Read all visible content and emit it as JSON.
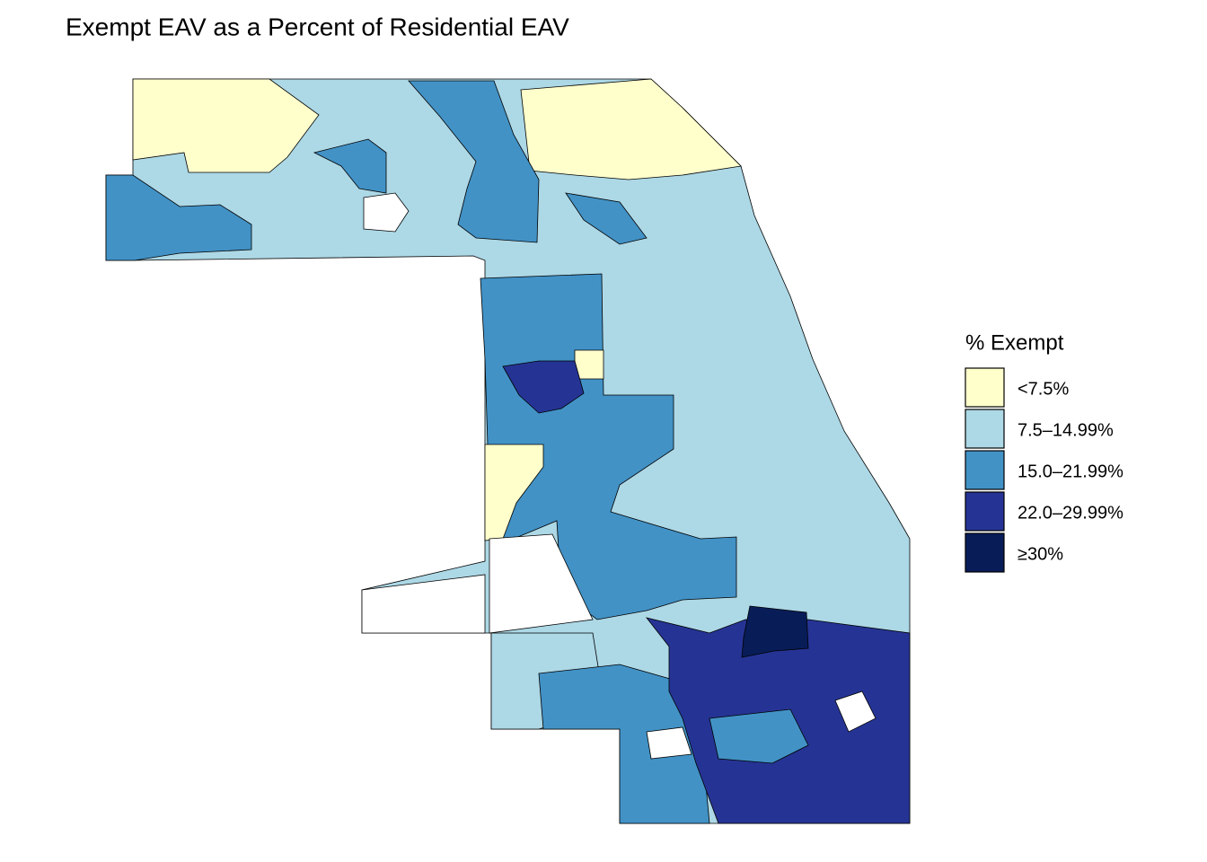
{
  "title": "Exempt EAV as a Percent of Residential EAV",
  "legend": {
    "title": "% Exempt",
    "items": [
      {
        "label": "<7.5%",
        "color": "#ffffcc"
      },
      {
        "label": "7.5–14.99%",
        "color": "#add8e6"
      },
      {
        "label": "15.0–21.99%",
        "color": "#4292c6"
      },
      {
        "label": "22.0–29.99%",
        "color": "#253494"
      },
      {
        "label": "≥30%",
        "color": "#081d58"
      }
    ]
  }
}
